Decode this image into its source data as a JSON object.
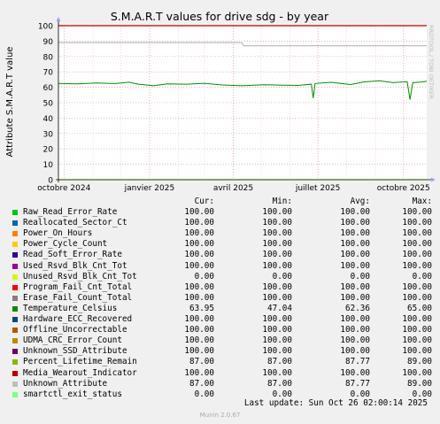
{
  "chart_data": {
    "type": "line",
    "title": "S.M.A.R.T values for drive sdg - by year",
    "ylabel": "Attribute S.M.A.R.T value",
    "ylim": [
      0,
      100
    ],
    "yticks": [
      0,
      10,
      20,
      30,
      40,
      50,
      60,
      70,
      80,
      90,
      100
    ],
    "x_labels": [
      {
        "label": "octobre 2024",
        "date": "2024-10-01"
      },
      {
        "label": "janvier 2025",
        "date": "2025-01-01"
      },
      {
        "label": "avril 2025",
        "date": "2025-04-01"
      },
      {
        "label": "juillet 2025",
        "date": "2025-07-01"
      },
      {
        "label": "octobre 2025",
        "date": "2025-10-01"
      }
    ],
    "xrange": [
      "2024-09-25",
      "2025-10-26"
    ],
    "grid": true,
    "temperature_points": [
      [
        "2024-09-25",
        62.5
      ],
      [
        "2024-10-15",
        62.2
      ],
      [
        "2024-11-05",
        62.8
      ],
      [
        "2024-11-25",
        62.4
      ],
      [
        "2024-12-10",
        63.3
      ],
      [
        "2024-12-20",
        62.0
      ],
      [
        "2025-01-05",
        61.0
      ],
      [
        "2025-01-20",
        62.2
      ],
      [
        "2025-02-10",
        62.0
      ],
      [
        "2025-03-01",
        62.6
      ],
      [
        "2025-03-20",
        61.5
      ],
      [
        "2025-04-10",
        61.0
      ],
      [
        "2025-05-05",
        61.6
      ],
      [
        "2025-05-25",
        61.3
      ],
      [
        "2025-06-10",
        61.2
      ],
      [
        "2025-06-24",
        62.0
      ],
      [
        "2025-06-26",
        53.0
      ],
      [
        "2025-06-28",
        62.5
      ],
      [
        "2025-07-15",
        63.2
      ],
      [
        "2025-08-05",
        61.8
      ],
      [
        "2025-08-20",
        63.5
      ],
      [
        "2025-09-05",
        64.2
      ],
      [
        "2025-09-20",
        63.0
      ],
      [
        "2025-10-05",
        63.6
      ],
      [
        "2025-10-08",
        52.0
      ],
      [
        "2025-10-11",
        63.0
      ],
      [
        "2025-10-20",
        63.4
      ],
      [
        "2025-10-26",
        63.95
      ]
    ],
    "percent_lifetime_points": [
      [
        "2024-09-25",
        89.0
      ],
      [
        "2025-04-10",
        89.0
      ],
      [
        "2025-04-12",
        87.0
      ],
      [
        "2025-10-26",
        87.0
      ]
    ],
    "header": {
      "cur": "Cur:",
      "min": "Min:",
      "avg": "Avg:",
      "max": "Max:"
    },
    "series": [
      {
        "name": "Raw_Read_Error_Rate",
        "color": "#00cc00",
        "cur": "100.00",
        "min": "100.00",
        "avg": "100.00",
        "max": "100.00"
      },
      {
        "name": "Reallocated_Sector_Ct",
        "color": "#0066b3",
        "cur": "100.00",
        "min": "100.00",
        "avg": "100.00",
        "max": "100.00"
      },
      {
        "name": "Power_On_Hours",
        "color": "#ff8000",
        "cur": "100.00",
        "min": "100.00",
        "avg": "100.00",
        "max": "100.00"
      },
      {
        "name": "Power_Cycle_Count",
        "color": "#ffcc00",
        "cur": "100.00",
        "min": "100.00",
        "avg": "100.00",
        "max": "100.00"
      },
      {
        "name": "Read_Soft_Error_Rate",
        "color": "#330099",
        "cur": "100.00",
        "min": "100.00",
        "avg": "100.00",
        "max": "100.00"
      },
      {
        "name": "Used_Rsvd_Blk_Cnt_Tot",
        "color": "#990099",
        "cur": "100.00",
        "min": "100.00",
        "avg": "100.00",
        "max": "100.00"
      },
      {
        "name": "Unused_Rsvd_Blk_Cnt_Tot",
        "color": "#ccff00",
        "cur": "0.00",
        "min": "0.00",
        "avg": "0.00",
        "max": "0.00"
      },
      {
        "name": "Program_Fail_Cnt_Total",
        "color": "#ff0000",
        "cur": "100.00",
        "min": "100.00",
        "avg": "100.00",
        "max": "100.00"
      },
      {
        "name": "Erase_Fail_Count_Total",
        "color": "#808080",
        "cur": "100.00",
        "min": "100.00",
        "avg": "100.00",
        "max": "100.00"
      },
      {
        "name": "Temperature_Celsius",
        "color": "#008f00",
        "cur": "63.95",
        "min": "47.04",
        "avg": "62.36",
        "max": "65.00"
      },
      {
        "name": "Hardware_ECC_Recovered",
        "color": "#00487d",
        "cur": "100.00",
        "min": "100.00",
        "avg": "100.00",
        "max": "100.00"
      },
      {
        "name": "Offline_Uncorrectable",
        "color": "#b35a00",
        "cur": "100.00",
        "min": "100.00",
        "avg": "100.00",
        "max": "100.00"
      },
      {
        "name": "UDMA_CRC_Error_Count",
        "color": "#b38f00",
        "cur": "100.00",
        "min": "100.00",
        "avg": "100.00",
        "max": "100.00"
      },
      {
        "name": "Unknown_SSD_Attribute",
        "color": "#6b006b",
        "cur": "100.00",
        "min": "100.00",
        "avg": "100.00",
        "max": "100.00"
      },
      {
        "name": "Percent_Lifetime_Remain",
        "color": "#8fb300",
        "cur": "87.00",
        "min": "87.00",
        "avg": "87.77",
        "max": "89.00"
      },
      {
        "name": "Media_Wearout_Indicator",
        "color": "#b30000",
        "cur": "100.00",
        "min": "100.00",
        "avg": "100.00",
        "max": "100.00"
      },
      {
        "name": "Unknown_Attribute",
        "color": "#bebebe",
        "cur": "87.00",
        "min": "87.00",
        "avg": "87.77",
        "max": "89.00"
      },
      {
        "name": "smartctl_exit_status",
        "color": "#80ff80",
        "cur": "0.00",
        "min": "0.00",
        "avg": "0.00",
        "max": "0.00"
      }
    ]
  },
  "footer": {
    "last_update": "Last update: Sun Oct 26 02:00:14 2025",
    "generator": "Munin 2.0.67",
    "watermark": "RRDTOOL / TOBI OETIKER"
  }
}
